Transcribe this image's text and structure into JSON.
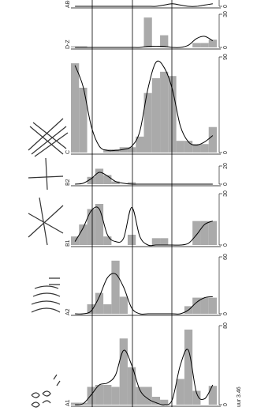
{
  "chart_data": [
    {
      "type": "bar",
      "label": "AB-V",
      "ylim": [
        0,
        30
      ],
      "yticks": [
        0,
        30
      ],
      "color": "#aaaaaa",
      "curve_color": "#000000",
      "values": [
        0,
        0,
        0,
        0,
        0,
        0,
        0,
        0,
        0,
        0,
        0,
        0,
        0,
        0,
        0,
        0,
        0,
        0
      ],
      "curve": [
        0,
        0,
        0,
        0,
        0,
        0,
        0,
        0,
        0,
        0,
        0,
        1,
        2,
        1,
        0,
        0,
        1,
        2
      ]
    },
    {
      "type": "bar",
      "label": "D-Z",
      "ylim": [
        0,
        30
      ],
      "yticks": [
        0,
        30
      ],
      "color": "#aaaaaa",
      "curve_color": "#000000",
      "values": [
        1,
        1,
        0,
        0,
        0,
        0,
        0,
        0,
        0,
        27,
        0,
        11,
        0,
        0,
        0,
        4,
        4,
        7
      ],
      "curve": [
        0,
        0,
        0,
        0,
        0,
        0,
        0,
        0,
        0,
        1,
        1,
        1,
        0,
        0,
        2,
        8,
        10,
        6
      ]
    },
    {
      "type": "bar",
      "label": "C",
      "ylim": [
        0,
        90
      ],
      "yticks": [
        0,
        90
      ],
      "color": "#aaaaaa",
      "curve_color": "#000000",
      "values": [
        84,
        61,
        0,
        0,
        3,
        3,
        5,
        5,
        15,
        56,
        70,
        76,
        72,
        11,
        11,
        8,
        8,
        24
      ],
      "curve": [
        82,
        62,
        25,
        6,
        2,
        2,
        3,
        6,
        20,
        60,
        85,
        80,
        60,
        25,
        10,
        7,
        10,
        16
      ]
    },
    {
      "type": "bar",
      "label": "B2",
      "ylim": [
        0,
        20
      ],
      "yticks": [
        0,
        20
      ],
      "color": "#aaaaaa",
      "curve_color": "#000000",
      "values": [
        0,
        0,
        8,
        17,
        10,
        3,
        0,
        2,
        0,
        0,
        0,
        0,
        0,
        0,
        0,
        0,
        0,
        0
      ],
      "curve": [
        0,
        1,
        6,
        13,
        9,
        3,
        1,
        0,
        0,
        0,
        0,
        0,
        0,
        0,
        0,
        0,
        0,
        0
      ]
    },
    {
      "type": "bar",
      "label": "B1",
      "ylim": [
        0,
        30
      ],
      "yticks": [
        0,
        30
      ],
      "color": "#aaaaaa",
      "curve_color": "#000000",
      "values": [
        5,
        12,
        21,
        24,
        5,
        0,
        0,
        6,
        0,
        0,
        4,
        4,
        0,
        0,
        0,
        14,
        14,
        14
      ],
      "curve": [
        2,
        10,
        20,
        21,
        6,
        2,
        4,
        22,
        5,
        0,
        0,
        0,
        0,
        0,
        1,
        6,
        12,
        14
      ]
    },
    {
      "type": "bar",
      "label": "A2",
      "ylim": [
        0,
        60
      ],
      "yticks": [
        0,
        60
      ],
      "color": "#aaaaaa",
      "curve_color": "#000000",
      "values": [
        0,
        0,
        10,
        22,
        10,
        56,
        18,
        0,
        0,
        0,
        0,
        0,
        0,
        0,
        8,
        17,
        17,
        17
      ],
      "curve": [
        0,
        0,
        3,
        18,
        38,
        42,
        28,
        6,
        0,
        0,
        0,
        0,
        0,
        0,
        4,
        12,
        17,
        18
      ]
    },
    {
      "type": "bar",
      "label": "A1",
      "ylim": [
        0,
        80
      ],
      "yticks": [
        0,
        80
      ],
      "color": "#aaaaaa",
      "curve_color": "#000000",
      "values": [
        2,
        2,
        18,
        20,
        20,
        18,
        67,
        38,
        18,
        18,
        8,
        5,
        0,
        26,
        76,
        14,
        0,
        19
      ],
      "curve": [
        0,
        1,
        10,
        20,
        22,
        30,
        55,
        40,
        15,
        6,
        2,
        0,
        5,
        40,
        55,
        12,
        6,
        20
      ]
    }
  ],
  "caption": "uur 3.46"
}
